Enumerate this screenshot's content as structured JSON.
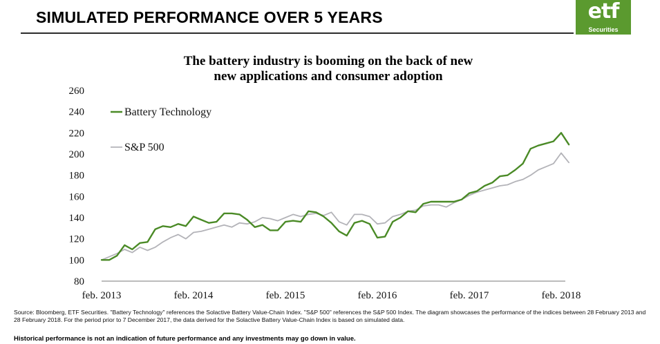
{
  "header": {
    "title": "SIMULATED PERFORMANCE OVER 5 YEARS",
    "logo_text": "etf",
    "logo_subtext": "Securities"
  },
  "colors": {
    "battery": "#4a8a26",
    "sp500": "#b3b3b8",
    "logo_bg": "#5b9a2f"
  },
  "chart_data": {
    "type": "line",
    "title_line1": "The battery industry is booming on the back of new",
    "title_line2": "new applications and consumer adoption",
    "ylim": [
      80,
      260
    ],
    "yticks": [
      80,
      100,
      120,
      140,
      160,
      180,
      200,
      220,
      240,
      260
    ],
    "xticks": [
      "feb. 2013",
      "feb. 2014",
      "feb. 2015",
      "feb. 2016",
      "feb. 2017",
      "feb. 2018"
    ],
    "xlim": [
      0,
      60
    ],
    "grid": false,
    "legend_position": "top-left",
    "series": [
      {
        "name": "Battery Technology",
        "color": "#4a8a26",
        "points": [
          [
            0,
            100
          ],
          [
            1,
            100
          ],
          [
            2,
            104
          ],
          [
            3,
            114
          ],
          [
            4,
            110
          ],
          [
            5,
            116
          ],
          [
            6,
            117
          ],
          [
            7,
            129
          ],
          [
            8,
            132
          ],
          [
            9,
            131
          ],
          [
            10,
            134
          ],
          [
            11,
            132
          ],
          [
            12,
            141
          ],
          [
            13,
            138
          ],
          [
            14,
            135
          ],
          [
            15,
            136
          ],
          [
            16,
            144
          ],
          [
            17,
            144
          ],
          [
            18,
            143
          ],
          [
            19,
            138
          ],
          [
            20,
            131
          ],
          [
            21,
            133
          ],
          [
            22,
            128
          ],
          [
            23,
            128
          ],
          [
            24,
            136
          ],
          [
            25,
            137
          ],
          [
            26,
            136
          ],
          [
            27,
            146
          ],
          [
            28,
            145
          ],
          [
            29,
            141
          ],
          [
            30,
            135
          ],
          [
            31,
            127
          ],
          [
            32,
            123
          ],
          [
            33,
            135
          ],
          [
            34,
            137
          ],
          [
            35,
            134
          ],
          [
            36,
            121
          ],
          [
            37,
            122
          ],
          [
            38,
            136
          ],
          [
            39,
            140
          ],
          [
            40,
            146
          ],
          [
            41,
            145
          ],
          [
            42,
            153
          ],
          [
            43,
            155
          ],
          [
            44,
            155
          ],
          [
            45,
            155
          ],
          [
            46,
            155
          ],
          [
            47,
            157
          ],
          [
            48,
            163
          ],
          [
            49,
            165
          ],
          [
            50,
            170
          ],
          [
            51,
            173
          ],
          [
            52,
            179
          ],
          [
            53,
            180
          ],
          [
            54,
            185
          ],
          [
            55,
            191
          ],
          [
            56,
            205
          ],
          [
            57,
            208
          ],
          [
            58,
            210
          ],
          [
            59,
            212
          ],
          [
            60,
            220
          ],
          [
            61,
            209
          ]
        ]
      },
      {
        "name": "S&P 500",
        "color": "#b3b3b8",
        "points": [
          [
            0,
            100
          ],
          [
            1,
            103
          ],
          [
            2,
            106
          ],
          [
            3,
            110
          ],
          [
            4,
            107
          ],
          [
            5,
            112
          ],
          [
            6,
            109
          ],
          [
            7,
            112
          ],
          [
            8,
            117
          ],
          [
            9,
            121
          ],
          [
            10,
            124
          ],
          [
            11,
            120
          ],
          [
            12,
            126
          ],
          [
            13,
            127
          ],
          [
            14,
            129
          ],
          [
            15,
            131
          ],
          [
            16,
            133
          ],
          [
            17,
            131
          ],
          [
            18,
            135
          ],
          [
            19,
            134
          ],
          [
            20,
            136
          ],
          [
            21,
            140
          ],
          [
            22,
            139
          ],
          [
            23,
            137
          ],
          [
            24,
            140
          ],
          [
            25,
            143
          ],
          [
            26,
            141
          ],
          [
            27,
            143
          ],
          [
            28,
            144
          ],
          [
            29,
            142
          ],
          [
            30,
            145
          ],
          [
            31,
            136
          ],
          [
            32,
            133
          ],
          [
            33,
            143
          ],
          [
            34,
            143
          ],
          [
            35,
            141
          ],
          [
            36,
            134
          ],
          [
            37,
            135
          ],
          [
            38,
            141
          ],
          [
            39,
            143
          ],
          [
            40,
            146
          ],
          [
            41,
            147
          ],
          [
            42,
            151
          ],
          [
            43,
            152
          ],
          [
            44,
            152
          ],
          [
            45,
            150
          ],
          [
            46,
            154
          ],
          [
            47,
            157
          ],
          [
            48,
            161
          ],
          [
            49,
            164
          ],
          [
            50,
            166
          ],
          [
            51,
            168
          ],
          [
            52,
            170
          ],
          [
            53,
            171
          ],
          [
            54,
            174
          ],
          [
            55,
            176
          ],
          [
            56,
            180
          ],
          [
            57,
            185
          ],
          [
            58,
            188
          ],
          [
            59,
            191
          ],
          [
            60,
            201
          ],
          [
            61,
            192
          ]
        ]
      }
    ]
  },
  "footer": {
    "source": "Source: Bloomberg, ETF Securities. \"Battery Technology\" references the Solactive Battery Value-Chain Index. \"S&P 500\" references the S&P 500 Index. The diagram showcases the performance of the indices between 28 February 2013 and 28 February 2018. For the period prior to 7 December 2017, the data derived for the Solactive Battery Value-Chain Index is based on simulated data.",
    "disclaimer": "Historical performance is not an indication of future performance and any investments may go down in value."
  }
}
